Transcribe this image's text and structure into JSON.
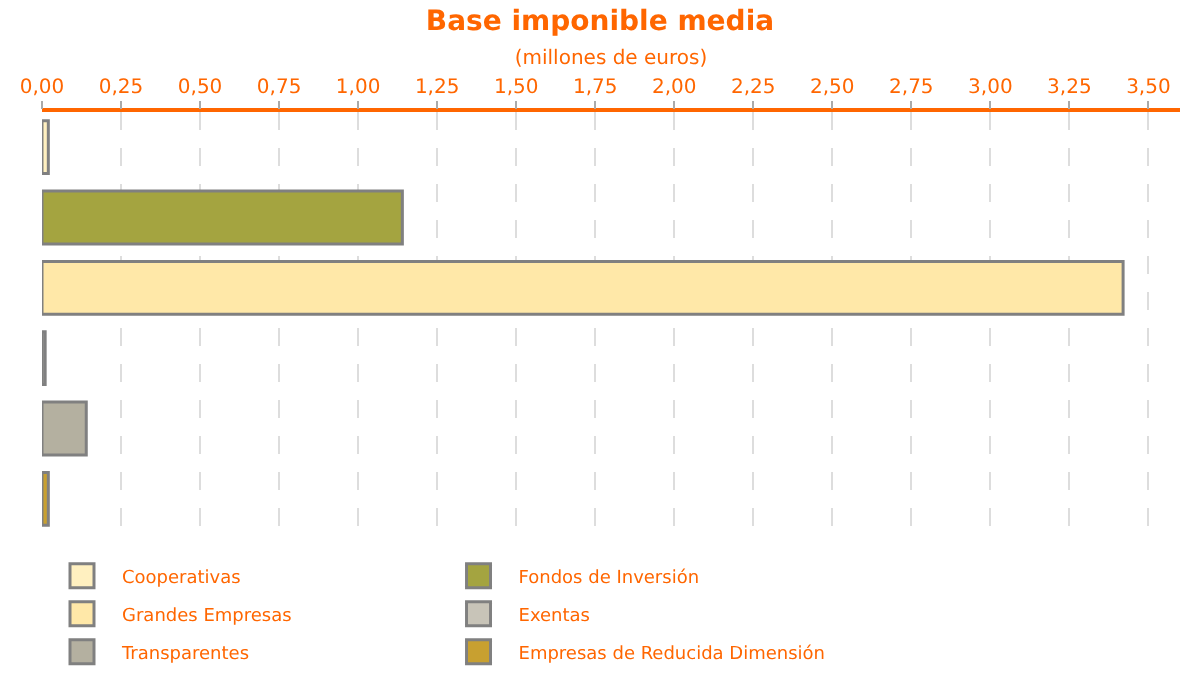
{
  "chart_data": {
    "type": "bar",
    "orientation": "horizontal",
    "title": "Base imponible media",
    "xlabel": "(millones de euros)",
    "categories": [
      null,
      null,
      null,
      null,
      null,
      null
    ],
    "series": [
      {
        "name": "Cooperativas",
        "color": "#fff0c0",
        "values": [
          0.02,
          null,
          null,
          null,
          null,
          null
        ]
      },
      {
        "name": "Fondos de Inversión",
        "color": "#a4a440",
        "values": [
          null,
          1.14,
          null,
          null,
          null,
          null
        ]
      },
      {
        "name": "Grandes Empresas",
        "color": "#ffe8a8",
        "values": [
          null,
          null,
          3.42,
          null,
          null,
          null
        ]
      },
      {
        "name": "Exentas",
        "color": "#c8c4b8",
        "values": [
          null,
          null,
          null,
          0.01,
          null,
          null
        ]
      },
      {
        "name": "Transparentes",
        "color": "#b4b0a0",
        "values": [
          null,
          null,
          null,
          null,
          0.14,
          null
        ]
      },
      {
        "name": "Empresas de Reducida Dimensión",
        "color": "#c8a030",
        "values": [
          null,
          null,
          null,
          null,
          null,
          0.02
        ]
      }
    ],
    "xlim": [
      0,
      3.6
    ],
    "xticks": [
      {
        "value": 0,
        "label": "0,00"
      },
      {
        "value": 0.25,
        "label": "0,25"
      },
      {
        "value": 0.5,
        "label": "0,50"
      },
      {
        "value": 0.75,
        "label": "0,75"
      },
      {
        "value": 1,
        "label": "1,00"
      },
      {
        "value": 1.25,
        "label": "1,25"
      },
      {
        "value": 1.5,
        "label": "1,50"
      },
      {
        "value": 1.75,
        "label": "1,75"
      },
      {
        "value": 2,
        "label": "2,00"
      },
      {
        "value": 2.25,
        "label": "2,25"
      },
      {
        "value": 2.5,
        "label": "2,50"
      },
      {
        "value": 2.75,
        "label": "2,75"
      },
      {
        "value": 3,
        "label": "3,00"
      },
      {
        "value": 3.25,
        "label": "3,25"
      },
      {
        "value": 3.5,
        "label": "3,50"
      }
    ],
    "grid": "x",
    "legend": "bottom",
    "tick_labels": "x"
  }
}
